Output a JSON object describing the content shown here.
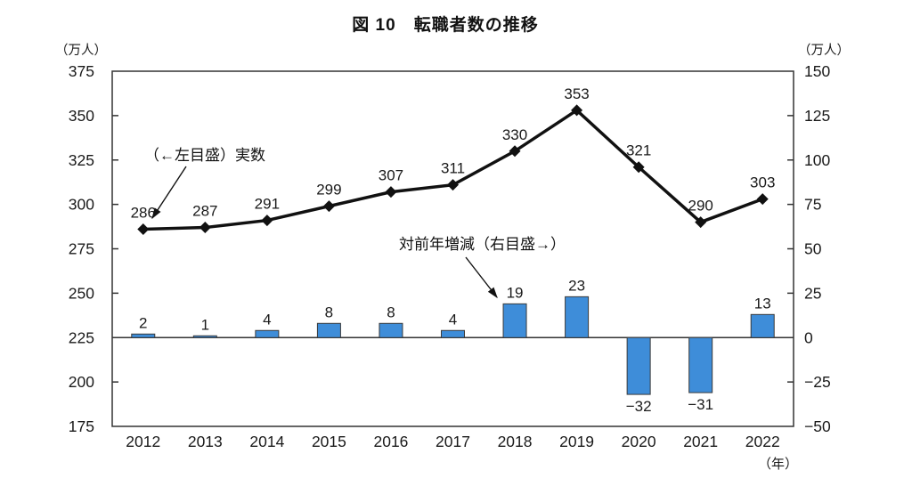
{
  "page": {
    "title": "図 10　転職者数の推移"
  },
  "chart_data": {
    "type": "bar",
    "subtype": "combo-line-bar",
    "title": "図 10　転職者数の推移",
    "categories": [
      "2012",
      "2013",
      "2014",
      "2015",
      "2016",
      "2017",
      "2018",
      "2019",
      "2020",
      "2021",
      "2022"
    ],
    "series": [
      {
        "name": "実数",
        "type": "line",
        "axis": "left",
        "marker": "diamond",
        "color": "#111111",
        "values": [
          286,
          287,
          291,
          299,
          307,
          311,
          330,
          353,
          321,
          290,
          303
        ]
      },
      {
        "name": "対前年増減",
        "type": "bar",
        "axis": "right",
        "color": "#3E8DD9",
        "border_color": "#3a3a3a",
        "values": [
          2,
          1,
          4,
          8,
          8,
          4,
          19,
          23,
          -32,
          -31,
          13
        ]
      }
    ],
    "left_axis": {
      "unit": "（万人）",
      "min": 175,
      "max": 375,
      "tick_step": 25,
      "ticks": [
        375,
        350,
        325,
        300,
        275,
        250,
        225,
        200,
        175
      ]
    },
    "right_axis": {
      "unit": "（万人）",
      "min": -50,
      "max": 150,
      "tick_step": 25,
      "ticks": [
        150,
        125,
        100,
        75,
        50,
        25,
        0,
        -25,
        -50
      ],
      "zero_line": true
    },
    "x_axis": {
      "unit": "（年）"
    },
    "annotations": [
      {
        "text": "（←左目盛）実数",
        "points_to": "line series 2012 point"
      },
      {
        "text": "対前年増減（右目盛→）",
        "points_to": "bar series 2018 bar"
      }
    ],
    "grid": false,
    "legend_position": "none",
    "plot_border": true,
    "data_labels": true
  }
}
